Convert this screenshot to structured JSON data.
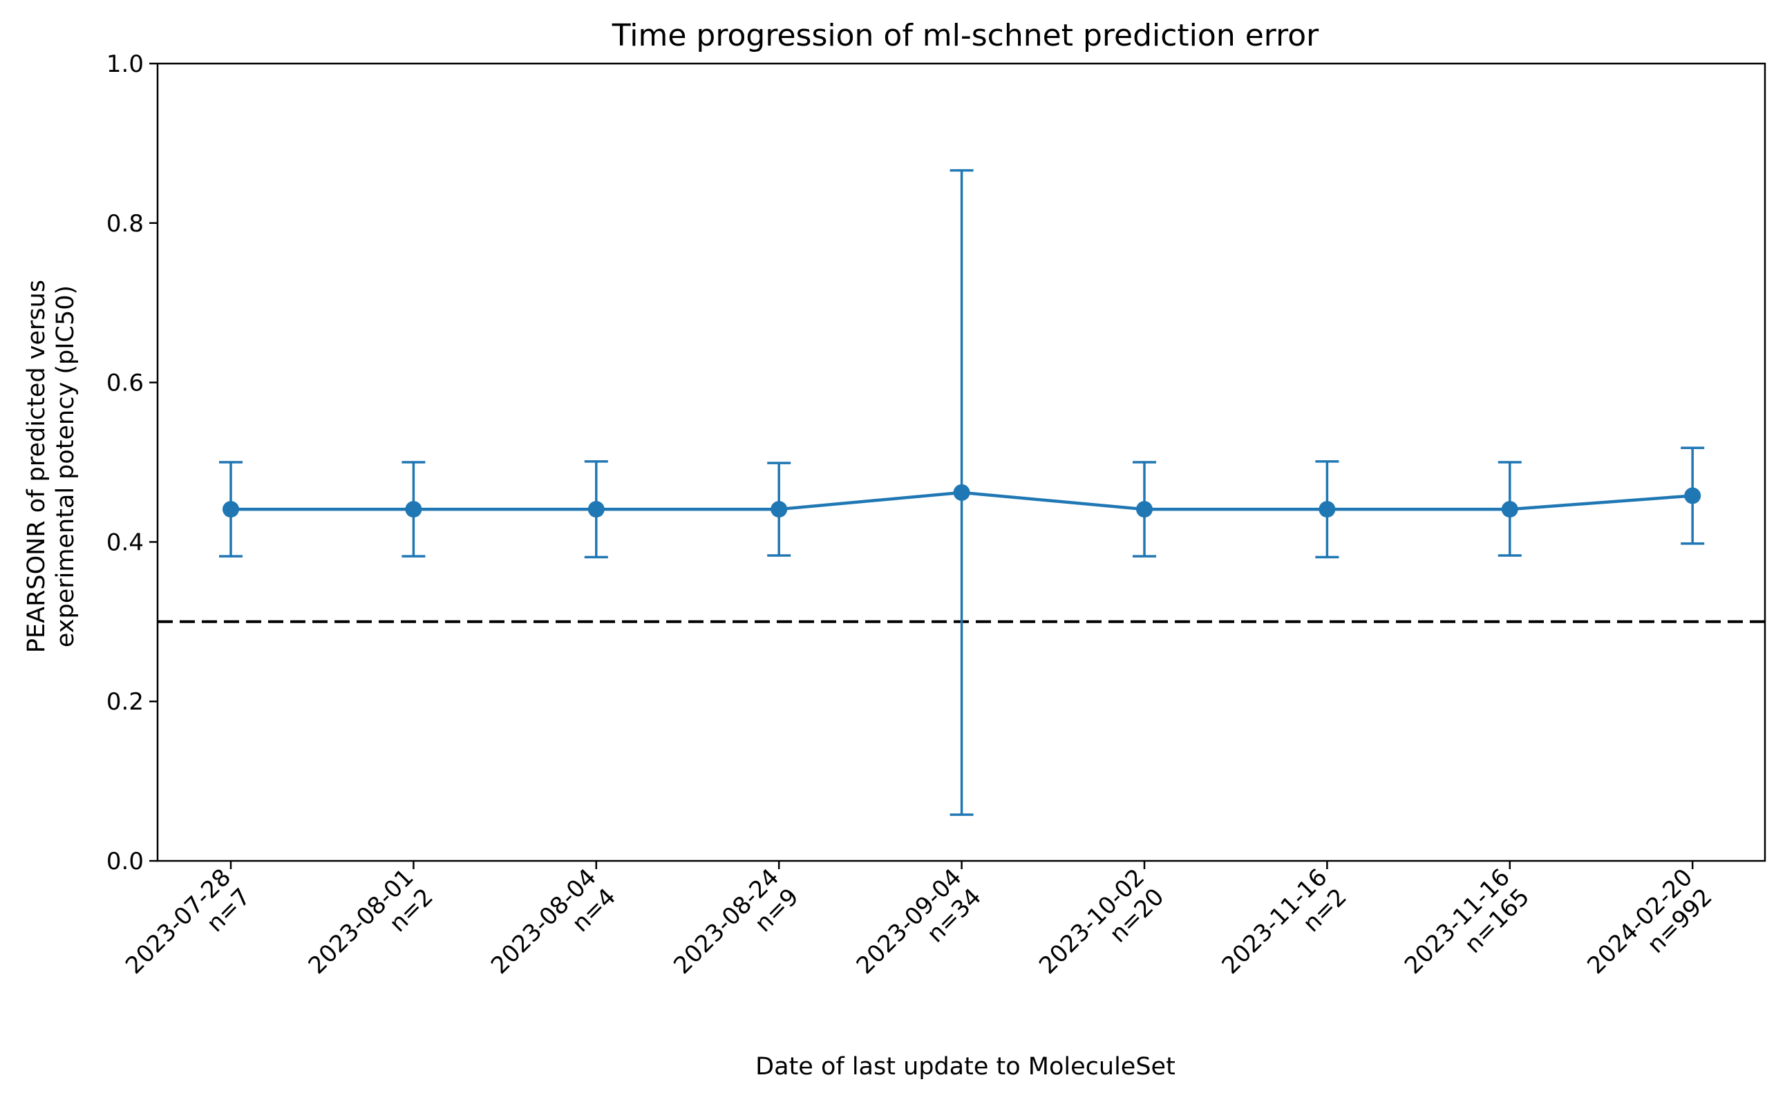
{
  "chart_data": {
    "type": "line",
    "title": "Time progression of ml-schnet prediction error",
    "xlabel": "Date of last update to MoleculeSet",
    "ylabel_lines": [
      "PEARSONR of predicted versus",
      "experimental potency (pIC50)"
    ],
    "categories": [
      {
        "date": "2023-07-28",
        "n": "n=7"
      },
      {
        "date": "2023-08-01",
        "n": "n=2"
      },
      {
        "date": "2023-08-04",
        "n": "n=4"
      },
      {
        "date": "2023-08-24",
        "n": "n=9"
      },
      {
        "date": "2023-09-04",
        "n": "n=34"
      },
      {
        "date": "2023-10-02",
        "n": "n=20"
      },
      {
        "date": "2023-11-16",
        "n": "n=2"
      },
      {
        "date": "2023-11-16",
        "n": "n=165"
      },
      {
        "date": "2024-02-20",
        "n": "n=992"
      }
    ],
    "series": [
      {
        "values": [
          0.441,
          0.441,
          0.441,
          0.441,
          0.462,
          0.441,
          0.441,
          0.441,
          0.458
        ],
        "err_low": [
          0.382,
          0.382,
          0.381,
          0.383,
          0.058,
          0.382,
          0.381,
          0.383,
          0.398
        ],
        "err_high": [
          0.5,
          0.5,
          0.501,
          0.499,
          0.866,
          0.5,
          0.501,
          0.5,
          0.518
        ],
        "color": "#1f77b4"
      }
    ],
    "reference_line": {
      "y": 0.3,
      "style": "dashed",
      "color": "#000000"
    },
    "ylim": [
      0.0,
      1.0
    ],
    "yticks": [
      "0.0",
      "0.2",
      "0.4",
      "0.6",
      "0.8",
      "1.0"
    ],
    "grid": false,
    "legend": "none"
  }
}
